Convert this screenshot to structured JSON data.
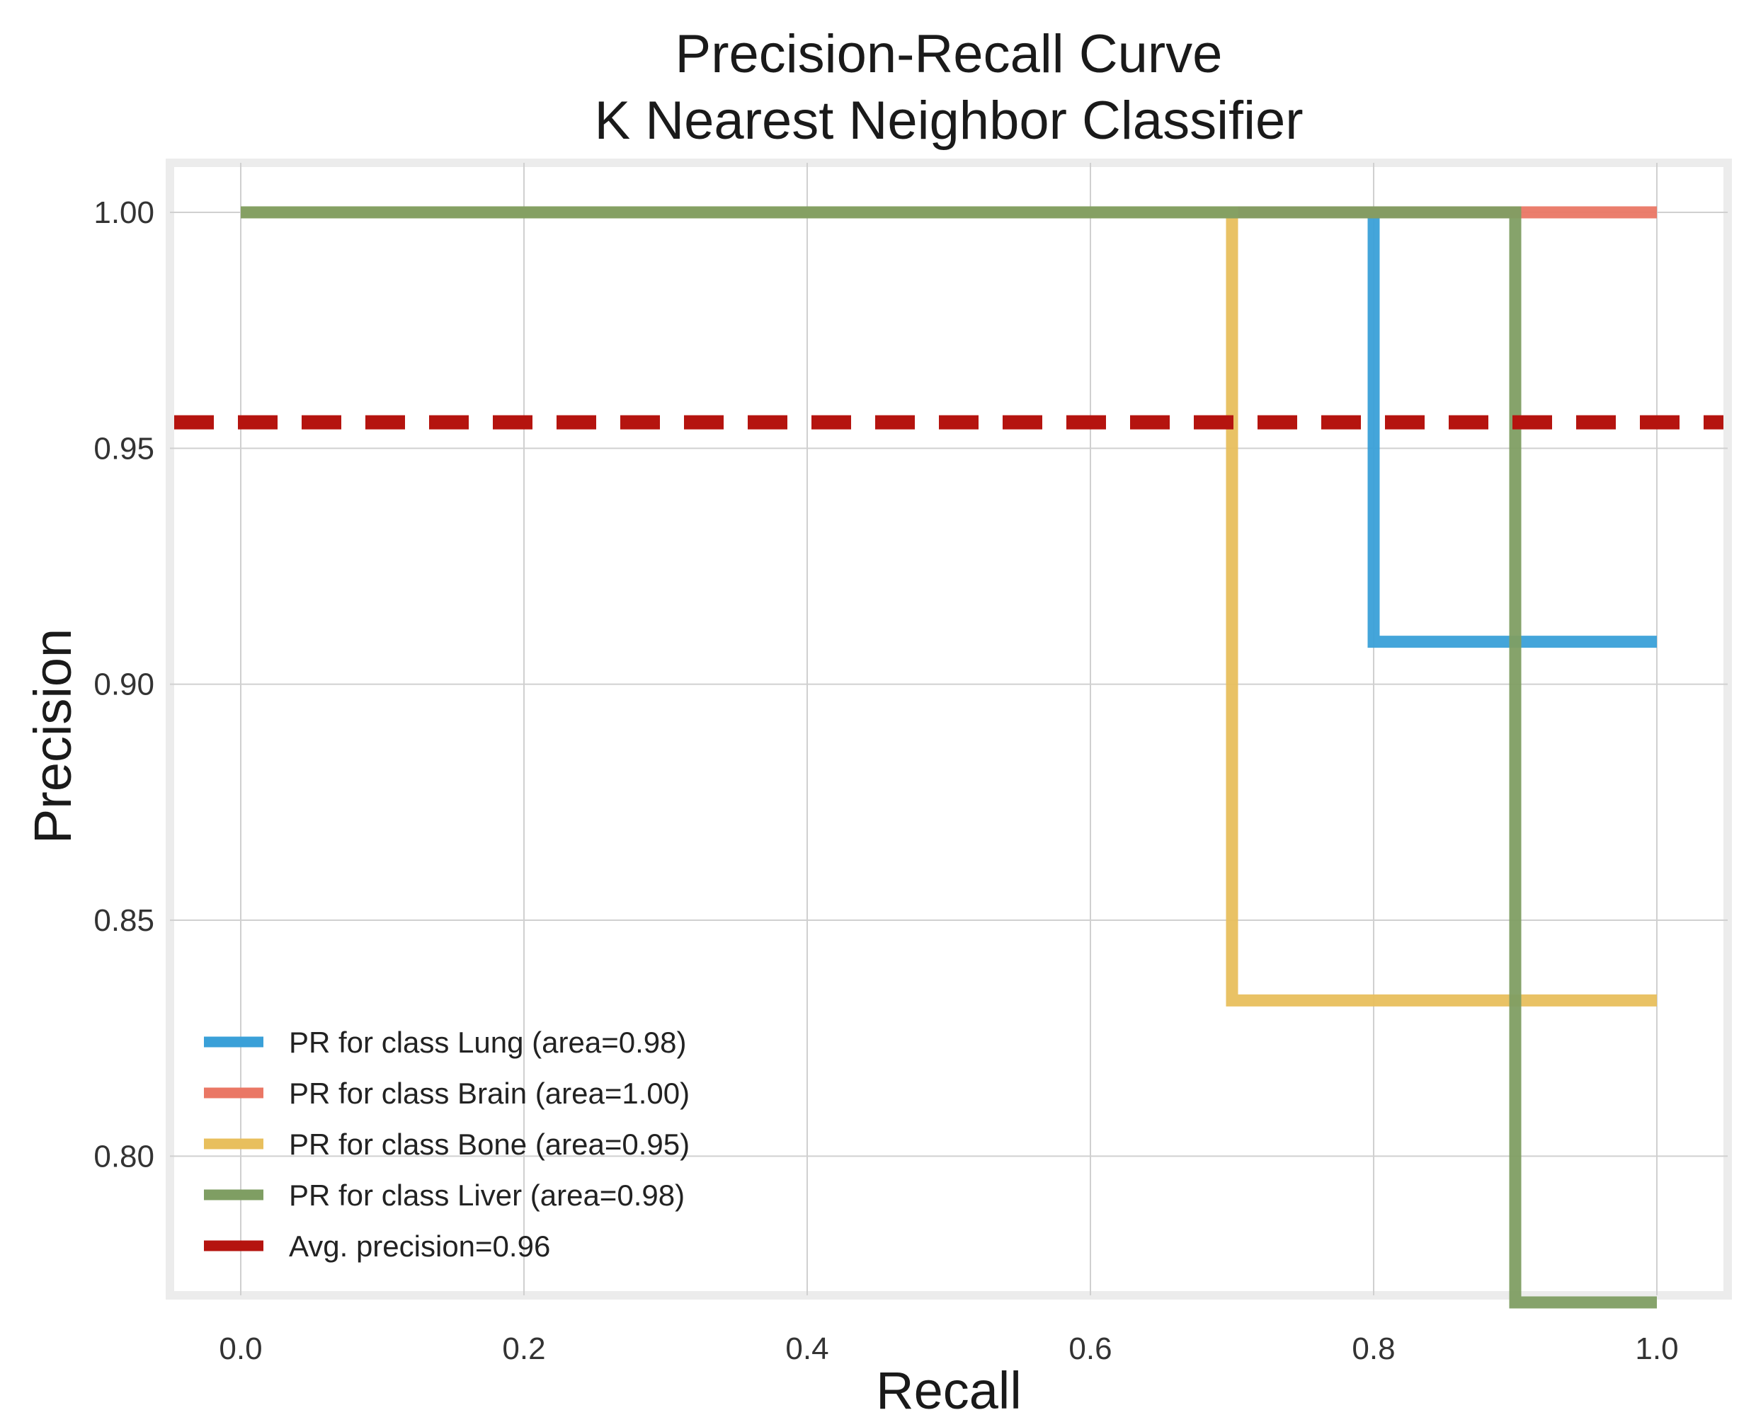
{
  "chart_data": {
    "type": "line",
    "title": "Precision-Recall Curve",
    "subtitle": "K Nearest Neighbor Classifier",
    "xlabel": "Recall",
    "ylabel": "Precision",
    "xlim": [
      -0.05,
      1.05
    ],
    "ylim": [
      0.7705,
      1.0105
    ],
    "xticks": [
      0.0,
      0.2,
      0.4,
      0.6,
      0.8,
      1.0
    ],
    "xtick_labels": [
      "0.0",
      "0.2",
      "0.4",
      "0.6",
      "0.8",
      "1.0"
    ],
    "yticks": [
      0.8,
      0.85,
      0.9,
      0.95,
      1.0
    ],
    "ytick_labels": [
      "0.80",
      "0.85",
      "0.90",
      "0.95",
      "1.00"
    ],
    "grid": true,
    "legend_position": "lower-left",
    "series": [
      {
        "name": "PR for class Lung (area=0.98)",
        "color": "#3aa0d8",
        "x": [
          0.0,
          0.8,
          0.8,
          1.0
        ],
        "y": [
          1.0,
          1.0,
          0.909,
          0.909
        ]
      },
      {
        "name": "PR for class Brain (area=1.00)",
        "color": "#ea7765",
        "x": [
          0.0,
          1.0
        ],
        "y": [
          1.0,
          1.0
        ]
      },
      {
        "name": "PR for class Bone (area=0.95)",
        "color": "#e8bf5d",
        "x": [
          0.0,
          0.7,
          0.7,
          1.0
        ],
        "y": [
          1.0,
          1.0,
          0.833,
          0.833
        ]
      },
      {
        "name": "PR for class Liver (area=0.98)",
        "color": "#7f9e63",
        "x": [
          0.0,
          0.9,
          0.9,
          1.0
        ],
        "y": [
          1.0,
          1.0,
          0.769,
          0.769
        ]
      }
    ],
    "reference_line": {
      "name": "Avg. precision=0.96",
      "color": "#b5140f",
      "y": 0.9555,
      "style": "dashed"
    }
  }
}
